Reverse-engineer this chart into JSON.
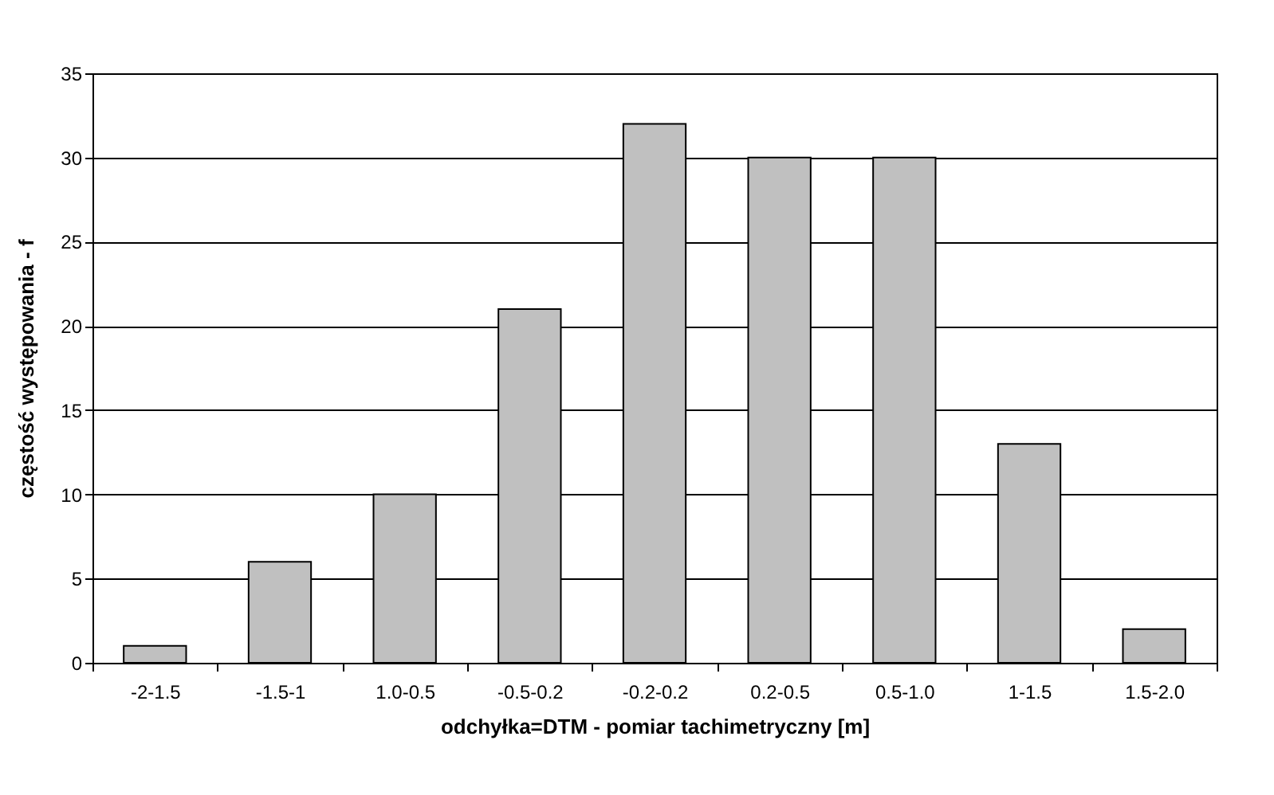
{
  "chart_data": {
    "type": "bar",
    "xlabel": "odchyłka=DTM - pomiar tachimetryczny [m]",
    "ylabel": "częstość występowania - f",
    "categories": [
      "-2-1.5",
      "-1.5-1",
      "1.0-0.5",
      "-0.5-0.2",
      "-0.2-0.2",
      "0.2-0.5",
      "0.5-1.0",
      "1-1.5",
      "1.5-2.0"
    ],
    "values": [
      1,
      6,
      10,
      21,
      32,
      30,
      30,
      13,
      2
    ],
    "color": "#c0c0c0",
    "ylim": [
      0,
      35
    ],
    "yticks": [
      0,
      5,
      10,
      15,
      20,
      25,
      30,
      35
    ],
    "grid": "y"
  }
}
